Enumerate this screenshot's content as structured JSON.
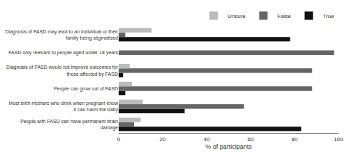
{
  "chart_data": {
    "type": "bar",
    "orientation": "horizontal",
    "categories": [
      "Diagnosis of FASD may lead to an individual or their\nfamily being stigmatised",
      "FASD only relevant to people aged under 18 years",
      "Diagnosis of FASD would not improve outcomes for\nthose affected by FASD",
      "People can grow out of FASD",
      "Most birth mothers who drink when pregnant know\nit can harm the baby",
      "People with FASD can have permanent brain\ndamage"
    ],
    "series": [
      {
        "name": "True",
        "color": "#111111",
        "values": [
          78,
          0,
          2,
          3,
          30,
          83
        ]
      },
      {
        "name": "False",
        "color": "#666666",
        "values": [
          3,
          98,
          88,
          88,
          57,
          7
        ]
      },
      {
        "name": "Unsure",
        "color": "#bbbbbb",
        "values": [
          15,
          0,
          5,
          6,
          11,
          10
        ]
      }
    ],
    "xlabel": "% of participants",
    "xlim": [
      0,
      100
    ],
    "xticks": [
      0,
      20,
      40,
      60,
      80,
      100
    ],
    "grid": false,
    "legend": "upper right"
  }
}
